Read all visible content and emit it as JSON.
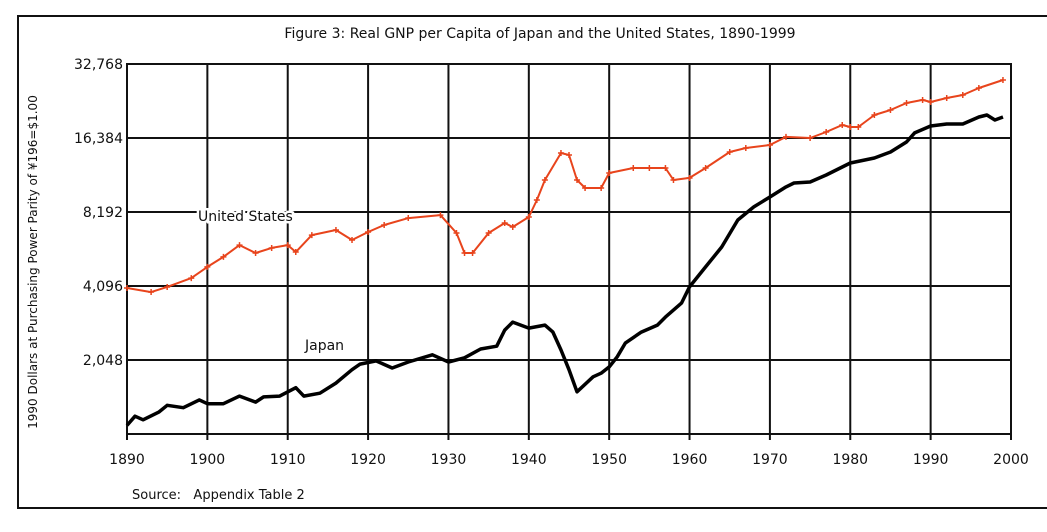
{
  "chart_data": {
    "type": "line",
    "title": "Figure 3:  Real GNP per Capita of Japan and the United States, 1890-1999",
    "xlabel": "",
    "ylabel": "1990 Dollars at Purchasing Power Parity of ¥196=$1.00",
    "source": "Source:   Appendix Table 2",
    "y_scale": "log2",
    "xlim": [
      1890,
      2000
    ],
    "ylim": [
      1024,
      32768
    ],
    "grid": true,
    "x_ticks": [
      1890,
      1900,
      1910,
      1920,
      1930,
      1940,
      1950,
      1960,
      1970,
      1980,
      1990,
      2000
    ],
    "x_tick_labels": [
      "1890",
      "1900",
      "1910",
      "1920",
      "1930",
      "1940",
      "1950",
      "1960",
      "1970",
      "1980",
      "1990",
      "2000"
    ],
    "y_ticks": [
      2048,
      4096,
      8192,
      16384,
      32768
    ],
    "y_tick_labels": [
      "2,048",
      "4,096",
      "8,192",
      "16,384",
      "32,768"
    ],
    "series": [
      {
        "name": "United States",
        "color": "#e8441c",
        "marker": "plus",
        "points": [
          [
            1890,
            4020
          ],
          [
            1893,
            3870
          ],
          [
            1895,
            4060
          ],
          [
            1898,
            4410
          ],
          [
            1900,
            4900
          ],
          [
            1902,
            5380
          ],
          [
            1904,
            6010
          ],
          [
            1906,
            5580
          ],
          [
            1908,
            5850
          ],
          [
            1910,
            6010
          ],
          [
            1911,
            5630
          ],
          [
            1913,
            6600
          ],
          [
            1916,
            6920
          ],
          [
            1918,
            6300
          ],
          [
            1920,
            6790
          ],
          [
            1922,
            7250
          ],
          [
            1925,
            7740
          ],
          [
            1929,
            7960
          ],
          [
            1931,
            6730
          ],
          [
            1932,
            5580
          ],
          [
            1933,
            5580
          ],
          [
            1935,
            6730
          ],
          [
            1937,
            7390
          ],
          [
            1938,
            7120
          ],
          [
            1940,
            7820
          ],
          [
            1941,
            9170
          ],
          [
            1942,
            11060
          ],
          [
            1944,
            14230
          ],
          [
            1945,
            13970
          ],
          [
            1946,
            11060
          ],
          [
            1947,
            10260
          ],
          [
            1949,
            10260
          ],
          [
            1950,
            11800
          ],
          [
            1953,
            12370
          ],
          [
            1955,
            12370
          ],
          [
            1957,
            12370
          ],
          [
            1958,
            11060
          ],
          [
            1960,
            11270
          ],
          [
            1962,
            12370
          ],
          [
            1965,
            14370
          ],
          [
            1967,
            14920
          ],
          [
            1970,
            15340
          ],
          [
            1972,
            16550
          ],
          [
            1975,
            16380
          ],
          [
            1977,
            17330
          ],
          [
            1979,
            18510
          ],
          [
            1980,
            18170
          ],
          [
            1981,
            18170
          ],
          [
            1983,
            20330
          ],
          [
            1985,
            21300
          ],
          [
            1987,
            22730
          ],
          [
            1989,
            23400
          ],
          [
            1990,
            22950
          ],
          [
            1992,
            23840
          ],
          [
            1994,
            24510
          ],
          [
            1996,
            26180
          ],
          [
            1999,
            28210
          ]
        ]
      },
      {
        "name": "Japan",
        "color": "#000000",
        "marker": "none",
        "points": [
          [
            1890,
            1110
          ],
          [
            1891,
            1210
          ],
          [
            1892,
            1170
          ],
          [
            1894,
            1260
          ],
          [
            1895,
            1340
          ],
          [
            1897,
            1310
          ],
          [
            1899,
            1410
          ],
          [
            1900,
            1360
          ],
          [
            1902,
            1360
          ],
          [
            1904,
            1460
          ],
          [
            1906,
            1380
          ],
          [
            1907,
            1450
          ],
          [
            1909,
            1460
          ],
          [
            1911,
            1580
          ],
          [
            1912,
            1460
          ],
          [
            1914,
            1500
          ],
          [
            1916,
            1650
          ],
          [
            1918,
            1870
          ],
          [
            1919,
            1970
          ],
          [
            1921,
            2030
          ],
          [
            1923,
            1900
          ],
          [
            1925,
            2010
          ],
          [
            1928,
            2150
          ],
          [
            1930,
            2010
          ],
          [
            1932,
            2090
          ],
          [
            1934,
            2270
          ],
          [
            1936,
            2330
          ],
          [
            1937,
            2710
          ],
          [
            1938,
            2920
          ],
          [
            1940,
            2760
          ],
          [
            1942,
            2840
          ],
          [
            1943,
            2660
          ],
          [
            1944,
            2250
          ],
          [
            1945,
            1870
          ],
          [
            1946,
            1520
          ],
          [
            1948,
            1750
          ],
          [
            1949,
            1810
          ],
          [
            1950,
            1920
          ],
          [
            1951,
            2110
          ],
          [
            1952,
            2400
          ],
          [
            1954,
            2660
          ],
          [
            1956,
            2840
          ],
          [
            1957,
            3060
          ],
          [
            1959,
            3490
          ],
          [
            1960,
            4060
          ],
          [
            1962,
            4900
          ],
          [
            1964,
            5900
          ],
          [
            1966,
            7600
          ],
          [
            1968,
            8590
          ],
          [
            1970,
            9430
          ],
          [
            1972,
            10360
          ],
          [
            1973,
            10750
          ],
          [
            1975,
            10850
          ],
          [
            1977,
            11590
          ],
          [
            1980,
            12960
          ],
          [
            1983,
            13590
          ],
          [
            1985,
            14370
          ],
          [
            1987,
            15780
          ],
          [
            1988,
            17180
          ],
          [
            1990,
            18330
          ],
          [
            1992,
            18680
          ],
          [
            1994,
            18680
          ],
          [
            1996,
            19950
          ],
          [
            1997,
            20330
          ],
          [
            1998,
            19390
          ],
          [
            1999,
            19950
          ]
        ]
      }
    ]
  }
}
